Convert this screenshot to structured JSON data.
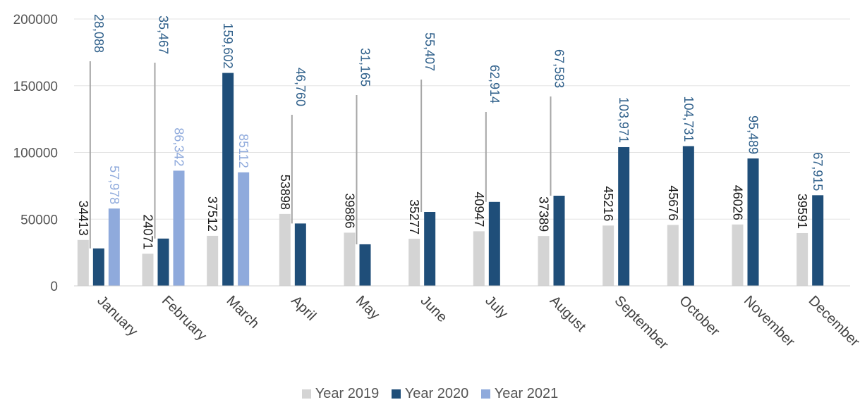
{
  "chart_data": {
    "type": "bar",
    "title": "",
    "xlabel": "",
    "ylabel": "",
    "ylim": [
      0,
      200000
    ],
    "yticks": [
      {
        "value": 0,
        "label": "0"
      },
      {
        "value": 50000,
        "label": "50000"
      },
      {
        "value": 100000,
        "label": "100000"
      },
      {
        "value": 150000,
        "label": "150000"
      },
      {
        "value": 200000,
        "label": "200000"
      }
    ],
    "grid": true,
    "legend_position": "bottom",
    "categories": [
      "January",
      "February",
      "March",
      "April",
      "May",
      "June",
      "July",
      "August",
      "September",
      "October",
      "November",
      "December"
    ],
    "series": [
      {
        "name": "Year 2019",
        "color": "#d4d4d4",
        "label_color": "#1a1a1a",
        "values": [
          34413,
          24071,
          37512,
          53898,
          39886,
          35277,
          40947,
          37389,
          45216,
          45676,
          46026,
          39591
        ],
        "labels": [
          "34413",
          "24071",
          "37512",
          "53898",
          "39886",
          "35277",
          "40947",
          "37389",
          "45216",
          "45676",
          "46026",
          "39591"
        ]
      },
      {
        "name": "Year 2020",
        "color": "#1f4e79",
        "label_color": "#2e5f8a",
        "values": [
          28088,
          35467,
          159602,
          46760,
          31165,
          55407,
          62914,
          67583,
          103971,
          104731,
          95489,
          67915
        ],
        "labels": [
          "28,088",
          "35,467",
          "159,602",
          "46,760",
          "31,165",
          "55,407",
          "62,914",
          "67,583",
          "103,971",
          "104,731",
          "95,489",
          "67,915"
        ]
      },
      {
        "name": "Year 2021",
        "color": "#8faadc",
        "label_color": "#8faadc",
        "values": [
          57978,
          86342,
          85112,
          null,
          null,
          null,
          null,
          null,
          null,
          null,
          null,
          null
        ],
        "labels": [
          "57,978",
          "86,342",
          "85112",
          "",
          "",
          "",
          "",
          "",
          "",
          "",
          "",
          ""
        ]
      }
    ]
  }
}
